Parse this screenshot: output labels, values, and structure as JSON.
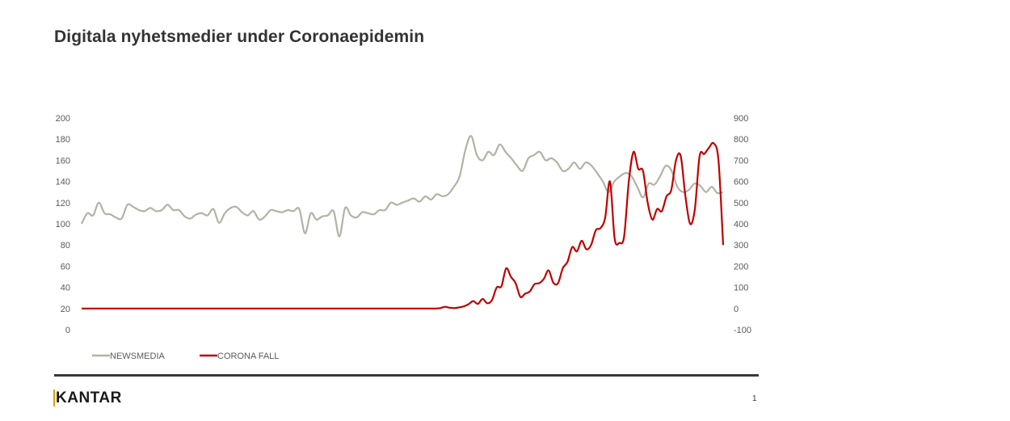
{
  "title": "Digitala nyhetsmedier under Coronaepidemin",
  "logo": "KANTAR",
  "page_number": "1",
  "colors": {
    "newsmedia": "#b3b2a5",
    "corona": "#c00000",
    "rule": "#3a3a3a",
    "logo_accent": "#d8a400"
  },
  "chart_data": {
    "type": "line",
    "title": "",
    "xlabel": "",
    "y_left": {
      "min": 0,
      "max": 200,
      "step": 20,
      "ticks": [
        "0",
        "20",
        "40",
        "60",
        "80",
        "100",
        "120",
        "140",
        "160",
        "180",
        "200"
      ]
    },
    "y_right": {
      "min": -100,
      "max": 900,
      "step": 100,
      "ticks": [
        "-100",
        "0",
        "100",
        "200",
        "300",
        "400",
        "500",
        "600",
        "700",
        "800",
        "900"
      ]
    },
    "x_count": 150,
    "grid": false,
    "legend_position": "bottom-left",
    "series": [
      {
        "name": "NEWSMEDIA",
        "axis": "left",
        "color": "#b3b2a5",
        "values": [
          100,
          110,
          108,
          120,
          110,
          109,
          106,
          105,
          118,
          116,
          113,
          112,
          115,
          112,
          113,
          118,
          113,
          113,
          107,
          105,
          109,
          110,
          108,
          114,
          101,
          110,
          115,
          116,
          111,
          108,
          112,
          104,
          107,
          113,
          112,
          111,
          113,
          112,
          114,
          91,
          110,
          104,
          107,
          108,
          112,
          88,
          115,
          108,
          106,
          111,
          110,
          109,
          113,
          113,
          120,
          118,
          120,
          122,
          124,
          121,
          126,
          123,
          128,
          126,
          128,
          135,
          145,
          170,
          183,
          165,
          160,
          168,
          165,
          175,
          168,
          162,
          155,
          150,
          162,
          165,
          168,
          160,
          162,
          158,
          150,
          152,
          158,
          152,
          158,
          155,
          148,
          140,
          130,
          140,
          145,
          148,
          145,
          135,
          125,
          138,
          137,
          145,
          155,
          150,
          135,
          130,
          132,
          138,
          136,
          130,
          135,
          129,
          130
        ]
      },
      {
        "name": "CORONA FALL",
        "axis": "right",
        "color": "#c00000",
        "values": [
          0,
          0,
          0,
          0,
          0,
          0,
          0,
          0,
          0,
          0,
          0,
          0,
          0,
          0,
          0,
          0,
          0,
          0,
          0,
          0,
          0,
          0,
          0,
          0,
          0,
          0,
          0,
          0,
          0,
          0,
          0,
          0,
          0,
          0,
          0,
          0,
          0,
          0,
          0,
          0,
          0,
          0,
          0,
          0,
          0,
          0,
          0,
          0,
          0,
          0,
          0,
          0,
          0,
          0,
          0,
          0,
          0,
          0,
          0,
          0,
          0,
          0,
          0,
          0,
          0,
          0,
          0,
          0,
          0,
          0,
          0,
          0,
          0,
          0,
          0,
          0,
          2,
          8,
          4,
          2,
          5,
          10,
          20,
          35,
          22,
          45,
          25,
          40,
          100,
          105,
          190,
          150,
          120,
          55,
          70,
          80,
          115,
          120,
          140,
          180,
          122,
          120,
          190,
          220,
          290,
          270,
          320,
          280,
          300,
          370,
          380,
          430,
          600,
          330,
          310,
          340,
          600,
          740,
          660,
          650,
          500,
          420,
          470,
          460,
          530,
          560,
          700,
          720,
          530,
          400,
          470,
          720,
          730,
          760,
          780,
          700,
          300
        ]
      }
    ]
  }
}
